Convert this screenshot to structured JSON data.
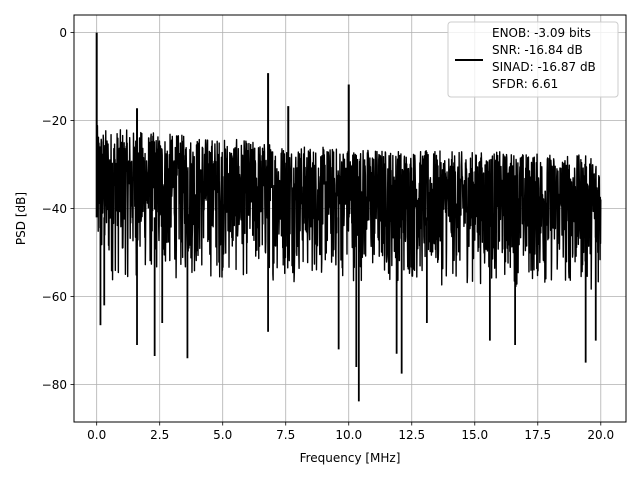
{
  "chart_data": {
    "type": "line",
    "title": "",
    "xlabel": "Frequency [MHz]",
    "ylabel": "PSD [dB]",
    "xlim": [
      -0.9,
      21.0
    ],
    "ylim": [
      -88.5,
      4.0
    ],
    "x_ticks": [
      0.0,
      2.5,
      5.0,
      7.5,
      10.0,
      12.5,
      15.0,
      17.5,
      20.0
    ],
    "x_tick_labels": [
      "0.0",
      "2.5",
      "5.0",
      "7.5",
      "10.0",
      "12.5",
      "15.0",
      "17.5",
      "20.0"
    ],
    "y_ticks": [
      0,
      -20,
      -40,
      -60,
      -80
    ],
    "y_tick_labels": [
      "0",
      "−20",
      "−40",
      "−60",
      "−80"
    ],
    "grid": true,
    "legend_position": "top-right",
    "legend": {
      "lines": [
        "ENOB: -3.09 bits",
        "SNR: -16.84 dB",
        "SINAD: -16.87 dB",
        "SFDR: 6.61"
      ],
      "color": "#000000"
    },
    "series": [
      {
        "color": "#000000",
        "noise_envelope": {
          "x": [
            0.0,
            0.5,
            1.0,
            2.0,
            3.0,
            4.0,
            5.0,
            6.0,
            7.0,
            8.0,
            9.0,
            10.0,
            12.0,
            14.0,
            16.0,
            18.0,
            20.0
          ],
          "upper": [
            -21,
            -22,
            -22,
            -22.5,
            -23,
            -23.5,
            -24,
            -24.5,
            -25,
            -25.5,
            -26,
            -26,
            -26.5,
            -27,
            -27,
            -27.5,
            -28
          ],
          "lower": [
            -58,
            -58,
            -57,
            -57,
            -57,
            -57,
            -57,
            -57,
            -57,
            -57,
            -57,
            -57,
            -58,
            -58,
            -58,
            -59,
            -59
          ]
        },
        "peaks": [
          {
            "x": 0.0,
            "y": 0.0
          },
          {
            "x": 1.6,
            "y": -17.2
          },
          {
            "x": 6.8,
            "y": -9.2
          },
          {
            "x": 7.6,
            "y": -16.7
          },
          {
            "x": 10.0,
            "y": -11.8
          }
        ],
        "dips": [
          {
            "x": 0.15,
            "y": -66.5
          },
          {
            "x": 0.3,
            "y": -62.0
          },
          {
            "x": 1.6,
            "y": -71.0
          },
          {
            "x": 2.3,
            "y": -73.5
          },
          {
            "x": 2.6,
            "y": -66.0
          },
          {
            "x": 3.6,
            "y": -74.0
          },
          {
            "x": 6.8,
            "y": -68.0
          },
          {
            "x": 9.6,
            "y": -72.0
          },
          {
            "x": 10.3,
            "y": -76.0
          },
          {
            "x": 10.4,
            "y": -83.8
          },
          {
            "x": 11.9,
            "y": -73.0
          },
          {
            "x": 12.1,
            "y": -77.5
          },
          {
            "x": 13.1,
            "y": -66.0
          },
          {
            "x": 15.6,
            "y": -70.0
          },
          {
            "x": 16.6,
            "y": -71.0
          },
          {
            "x": 19.4,
            "y": -75.0
          },
          {
            "x": 19.8,
            "y": -70.0
          }
        ]
      }
    ]
  }
}
